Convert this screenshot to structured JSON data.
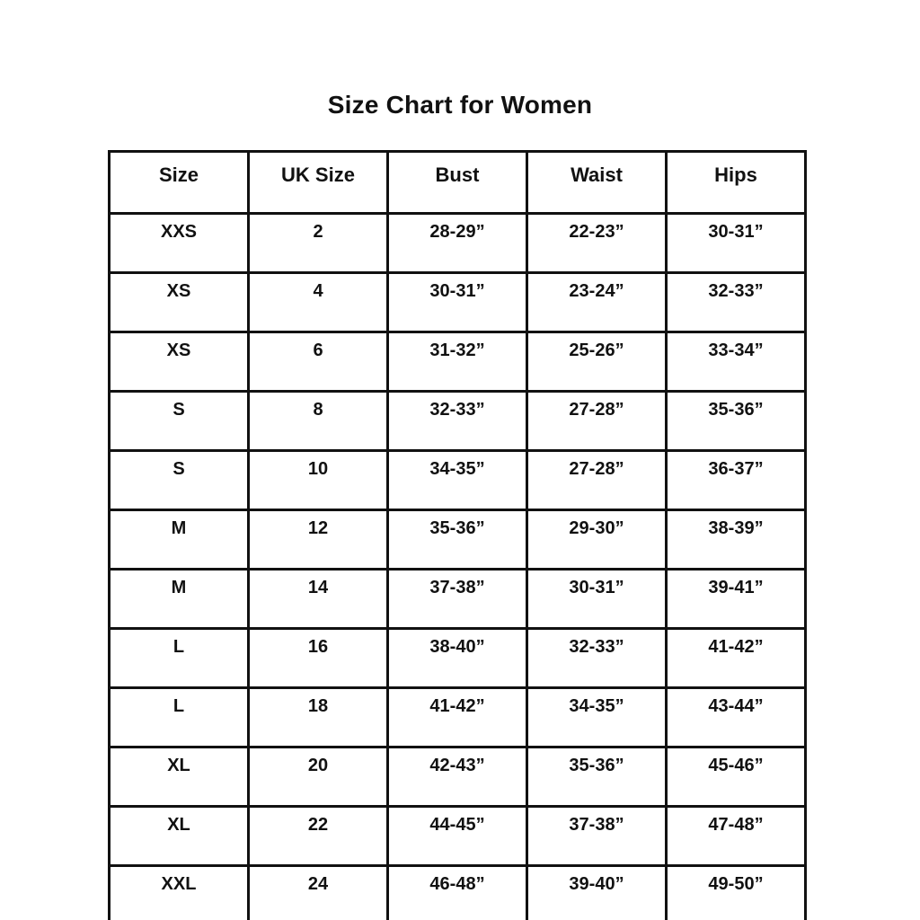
{
  "title": "Size Chart for Women",
  "chart_data": {
    "type": "table",
    "title": "Size Chart for Women",
    "columns": [
      "Size",
      "UK Size",
      "Bust",
      "Waist",
      "Hips"
    ],
    "rows": [
      [
        "XXS",
        "2",
        "28-29”",
        "22-23”",
        "30-31”"
      ],
      [
        "XS",
        "4",
        "30-31”",
        "23-24”",
        "32-33”"
      ],
      [
        "XS",
        "6",
        "31-32”",
        "25-26”",
        "33-34”"
      ],
      [
        "S",
        "8",
        "32-33”",
        "27-28”",
        "35-36”"
      ],
      [
        "S",
        "10",
        "34-35”",
        "27-28”",
        "36-37”"
      ],
      [
        "M",
        "12",
        "35-36”",
        "29-30”",
        "38-39”"
      ],
      [
        "M",
        "14",
        "37-38”",
        "30-31”",
        "39-41”"
      ],
      [
        "L",
        "16",
        "38-40”",
        "32-33”",
        "41-42”"
      ],
      [
        "L",
        "18",
        "41-42”",
        "34-35”",
        "43-44”"
      ],
      [
        "XL",
        "20",
        "42-43”",
        "35-36”",
        "45-46”"
      ],
      [
        "XL",
        "22",
        "44-45”",
        "37-38”",
        "47-48”"
      ],
      [
        "XXL",
        "24",
        "46-48”",
        "39-40”",
        "49-50”"
      ]
    ]
  },
  "colors": {
    "text": "#111111",
    "border": "#111111",
    "background": "#ffffff"
  }
}
